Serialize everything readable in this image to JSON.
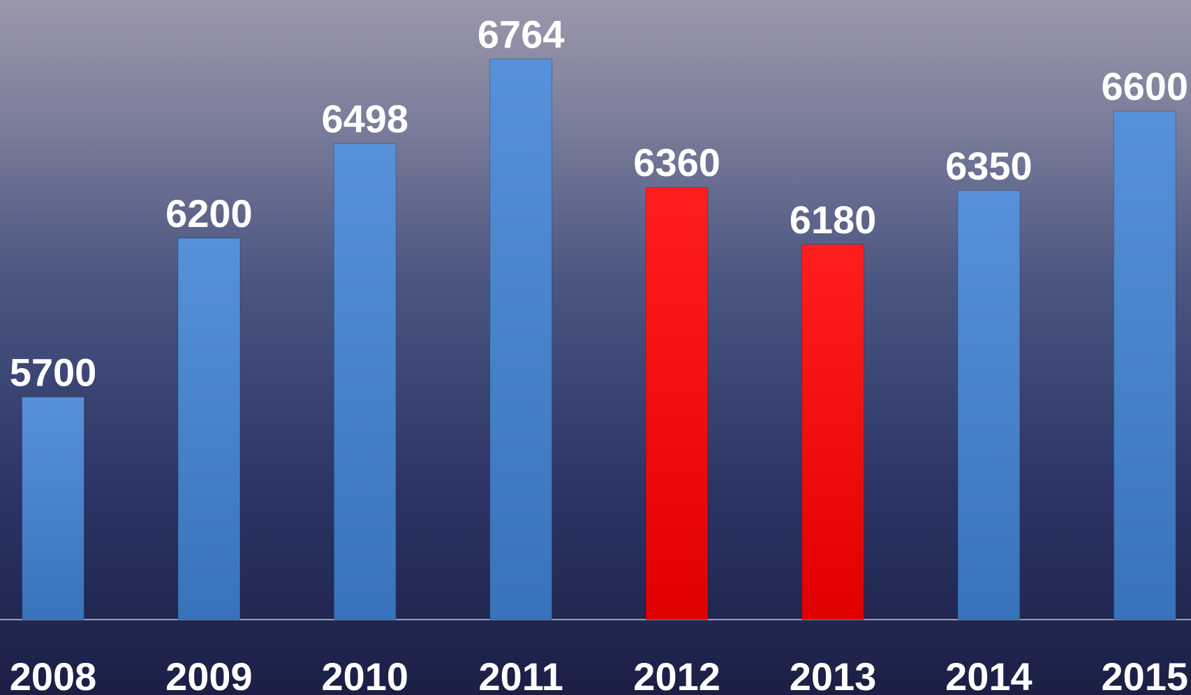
{
  "chart_data": {
    "type": "bar",
    "categories": [
      "2008",
      "2009",
      "2010",
      "2011",
      "2012",
      "2013",
      "2014",
      "2015"
    ],
    "values": [
      5700,
      6200,
      6498,
      6764,
      6360,
      6180,
      6350,
      6600
    ],
    "colors": [
      "#3f82d4",
      "#3f82d4",
      "#3f82d4",
      "#3f82d4",
      "#ff0000",
      "#ff0000",
      "#3f82d4",
      "#3f82d4"
    ],
    "ylim": [
      5000,
      7000
    ]
  }
}
